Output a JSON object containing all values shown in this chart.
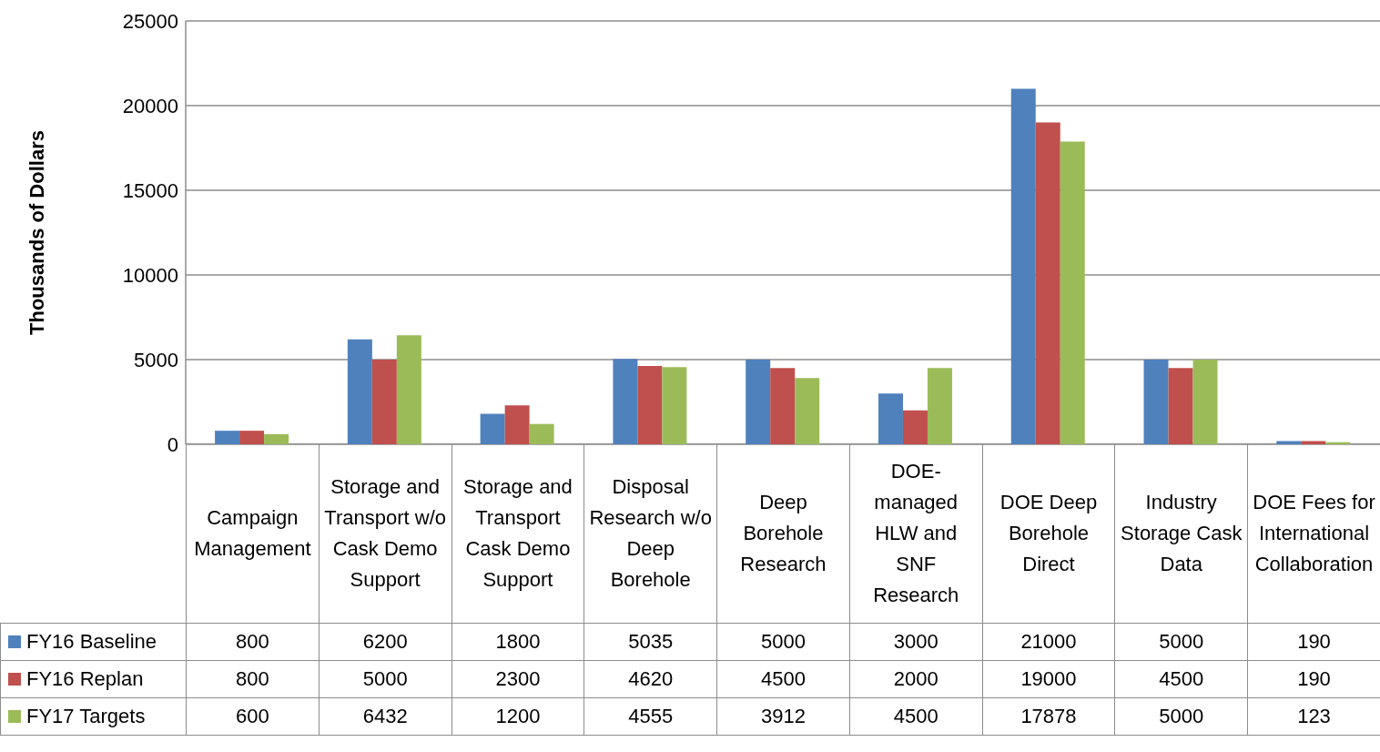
{
  "chart_data": {
    "type": "bar",
    "ylabel": "Thousands of Dollars",
    "categories": [
      "Campaign Management",
      "Storage and Transport w/o Cask Demo Support",
      "Storage and Transport Cask Demo Support",
      "Disposal Research w/o Deep Borehole",
      "Deep Borehole Research",
      "DOE-managed HLW and SNF Research",
      "DOE Deep Borehole Direct",
      "Industry Storage Cask Data",
      "DOE Fees for International Collaboration"
    ],
    "series": [
      {
        "name": "FY16 Baseline",
        "color": "#4f81bd",
        "values": [
          800,
          6200,
          1800,
          5035,
          5000,
          3000,
          21000,
          5000,
          190
        ]
      },
      {
        "name": "FY16 Replan",
        "color": "#c0504d",
        "values": [
          800,
          5000,
          2300,
          4620,
          4500,
          2000,
          19000,
          4500,
          190
        ]
      },
      {
        "name": "FY17 Targets",
        "color": "#9bbb59",
        "values": [
          600,
          6432,
          1200,
          4555,
          3912,
          4500,
          17878,
          5000,
          123
        ]
      }
    ],
    "ylim": [
      0,
      25000
    ],
    "yticks": [
      0,
      5000,
      10000,
      15000,
      20000,
      25000
    ],
    "grid": "y",
    "legend": "bottom",
    "data_labels": true
  }
}
